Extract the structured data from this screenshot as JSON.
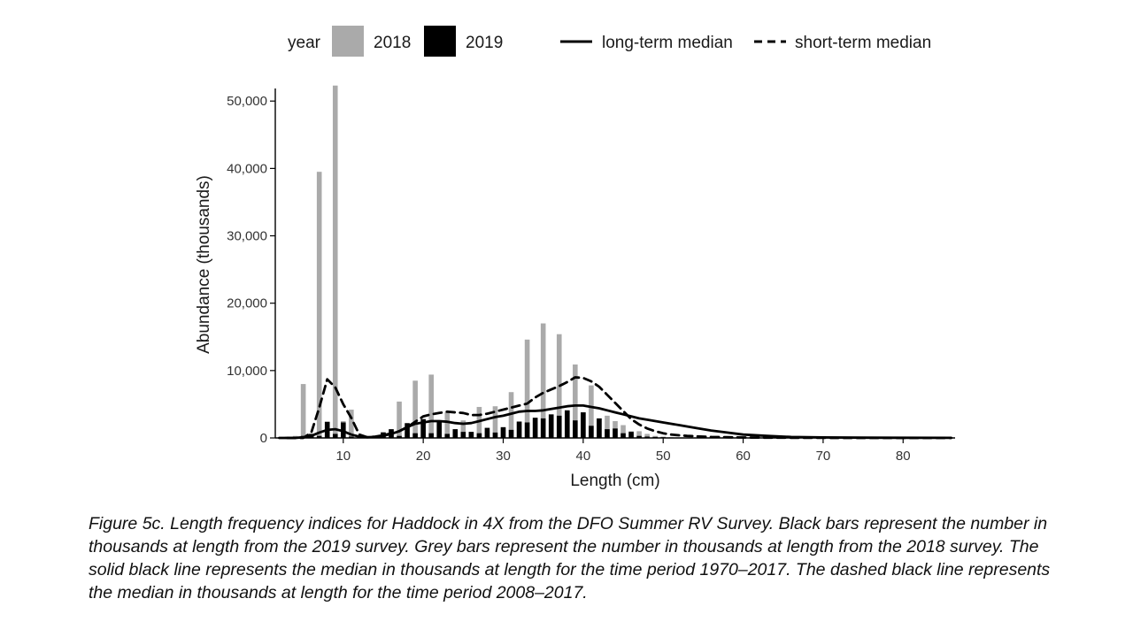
{
  "chart_data": {
    "type": "bar",
    "xlabel": "Length (cm)",
    "ylabel": "Abundance (thousands)",
    "xlim": [
      1.5,
      86.5
    ],
    "ylim": [
      0,
      52000
    ],
    "x_ticks": [
      10,
      20,
      30,
      40,
      50,
      60,
      70,
      80
    ],
    "y_ticks": [
      0,
      10000,
      20000,
      30000,
      40000,
      50000
    ],
    "y_tick_labels": [
      "0",
      "10,000",
      "20,000",
      "30,000",
      "40,000",
      "50,000"
    ],
    "grid": false,
    "legend": {
      "position": "top",
      "title": "year",
      "entries": [
        {
          "label": "2018",
          "kind": "bar",
          "color": "#aaaaaa"
        },
        {
          "label": "2019",
          "kind": "bar",
          "color": "#000000"
        },
        {
          "label": "long-term median",
          "kind": "solid-line",
          "color": "#000000"
        },
        {
          "label": "short-term median",
          "kind": "dashed-line",
          "color": "#000000"
        }
      ]
    },
    "bars": {
      "x": [
        3,
        4,
        5,
        6,
        7,
        8,
        9,
        10,
        11,
        12,
        13,
        14,
        15,
        16,
        17,
        18,
        19,
        20,
        21,
        22,
        23,
        24,
        25,
        26,
        27,
        28,
        29,
        30,
        31,
        32,
        33,
        34,
        35,
        36,
        37,
        38,
        39,
        40,
        41,
        42,
        43,
        44,
        45,
        46,
        47,
        48,
        49,
        50,
        51,
        52
      ],
      "series": [
        {
          "name": "2018",
          "color": "#aaaaaa",
          "values": [
            200,
            300,
            8000,
            600,
            39500,
            700,
            52300,
            2500,
            4200,
            150,
            100,
            300,
            900,
            1200,
            5400,
            800,
            8500,
            2200,
            9400,
            2000,
            3800,
            900,
            2600,
            900,
            4600,
            1000,
            4700,
            1500,
            6800,
            2500,
            14600,
            2800,
            17000,
            3400,
            15400,
            4000,
            10900,
            3800,
            7800,
            2900,
            3300,
            2500,
            1900,
            1000,
            1000,
            600,
            300,
            200,
            100,
            50
          ]
        },
        {
          "name": "2019",
          "color": "#000000",
          "values": [
            0,
            100,
            300,
            600,
            300,
            2400,
            600,
            2300,
            200,
            50,
            100,
            300,
            800,
            1300,
            300,
            2200,
            700,
            2800,
            700,
            2500,
            600,
            1300,
            900,
            900,
            700,
            1500,
            800,
            1600,
            1200,
            2400,
            2300,
            3000,
            2900,
            3500,
            3300,
            4100,
            2600,
            3800,
            1800,
            2900,
            1300,
            1400,
            700,
            900,
            300,
            200,
            150,
            100,
            50,
            0
          ]
        }
      ]
    },
    "lines": [
      {
        "name": "long-term median",
        "style": "solid",
        "x": [
          2,
          4,
          5,
          6,
          7,
          8,
          9,
          10,
          11,
          12,
          13,
          14,
          15,
          16,
          17,
          18,
          19,
          20,
          21,
          22,
          23,
          24,
          25,
          26,
          27,
          28,
          29,
          30,
          31,
          32,
          33,
          34,
          35,
          36,
          37,
          38,
          39,
          40,
          41,
          42,
          43,
          44,
          45,
          46,
          47,
          48,
          50,
          52,
          54,
          56,
          58,
          60,
          63,
          66,
          70,
          75,
          80,
          86
        ],
        "y": [
          0,
          0,
          100,
          300,
          800,
          1200,
          1300,
          1000,
          500,
          200,
          100,
          150,
          300,
          600,
          1000,
          1600,
          2100,
          2300,
          2500,
          2500,
          2400,
          2200,
          2100,
          2200,
          2500,
          2800,
          3100,
          3300,
          3600,
          3900,
          4000,
          4000,
          4100,
          4300,
          4500,
          4700,
          4800,
          4800,
          4600,
          4400,
          4100,
          3800,
          3500,
          3200,
          2900,
          2700,
          2300,
          1900,
          1500,
          1100,
          800,
          500,
          300,
          150,
          80,
          40,
          20,
          10
        ]
      },
      {
        "name": "short-term median",
        "style": "dashed",
        "x": [
          3,
          5,
          6,
          7,
          8,
          9,
          10,
          11,
          12,
          13,
          14,
          15,
          16,
          17,
          18,
          19,
          20,
          21,
          22,
          23,
          24,
          25,
          26,
          27,
          28,
          29,
          30,
          31,
          32,
          33,
          34,
          35,
          36,
          37,
          38,
          39,
          40,
          41,
          42,
          43,
          44,
          45,
          46,
          47,
          48,
          49,
          50,
          51,
          52,
          53,
          54,
          55,
          56,
          58,
          60,
          63,
          66,
          70,
          75,
          80,
          86
        ],
        "y": [
          0,
          0,
          800,
          4500,
          8700,
          7500,
          5000,
          3000,
          500,
          100,
          200,
          400,
          700,
          1000,
          1600,
          2400,
          3200,
          3500,
          3700,
          3900,
          3800,
          3700,
          3400,
          3400,
          3600,
          3900,
          4200,
          4500,
          4800,
          5100,
          6000,
          6700,
          7200,
          7700,
          8300,
          9000,
          8900,
          8400,
          7600,
          6400,
          5200,
          4000,
          2800,
          2000,
          1400,
          1000,
          700,
          500,
          400,
          300,
          250,
          200,
          150,
          100,
          70,
          40,
          20,
          10,
          5,
          2,
          0
        ]
      }
    ]
  },
  "caption": "Figure 5c. Length frequency indices for Haddock in 4X from the DFO Summer RV Survey. Black bars represent the number in thousands at length from the 2019 survey. Grey bars represent the number in thousands at length from the 2018 survey. The solid black line represents the median in thousands at length for the time period 1970–2017. The dashed black line represents the median in thousands at length for the time period 2008–2017."
}
